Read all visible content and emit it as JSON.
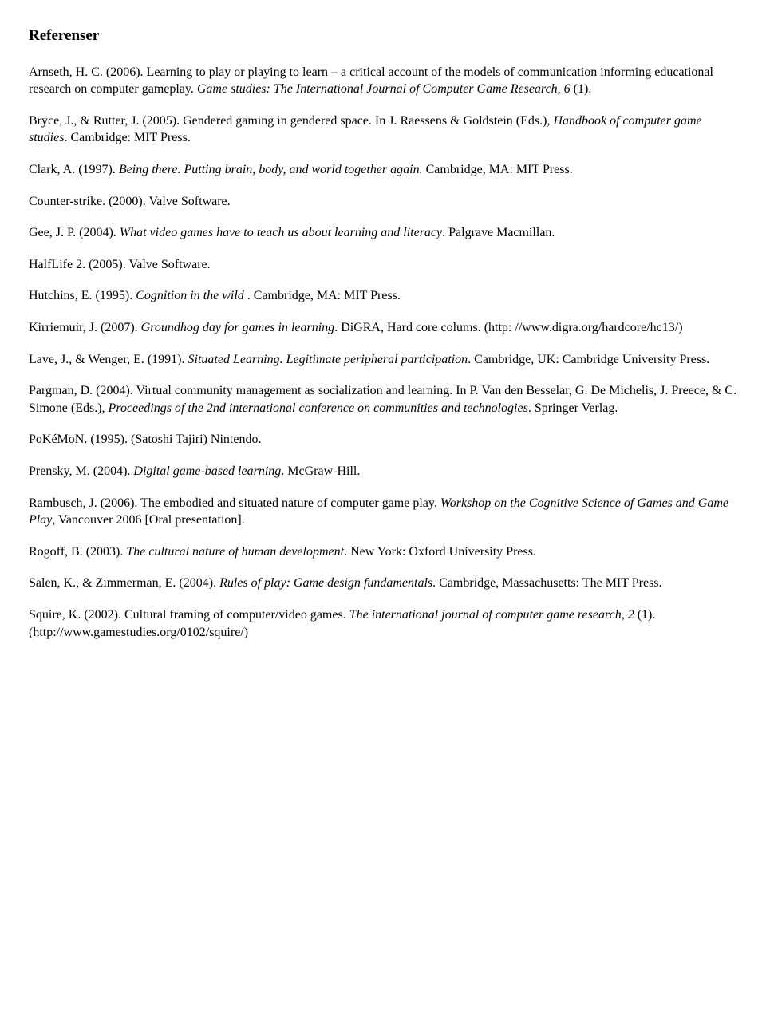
{
  "title": "Referenser",
  "refs": {
    "r1a": "Arnseth, H. C. (2006). Learning to play or playing to learn – a critical account of the models of communication informing educational research on computer gameplay. ",
    "r1b": "Game studies: The International Journal of Computer Game Research, 6",
    "r1c": " (1).",
    "r2a": "Bryce, J., & Rutter, J. (2005). Gendered gaming in gendered space. In J. Raessens & Goldstein (Eds.), ",
    "r2b": "Handbook of computer game studies",
    "r2c": ". Cambridge: MIT Press.",
    "r3a": "Clark, A. (1997). ",
    "r3b": "Being there. Putting brain, body, and world together again.",
    "r3c": " Cambridge, MA: MIT Press.",
    "r4": "Counter-strike. (2000). Valve Software.",
    "r5a": "Gee, J. P. (2004). ",
    "r5b": "What video games have to teach us about learning and literacy",
    "r5c": ". Palgrave Macmillan.",
    "r6": "HalfLife 2. (2005). Valve Software.",
    "r7a": "Hutchins, E. (1995). ",
    "r7b": "Cognition in the wild ",
    "r7c": ". Cambridge, MA: MIT Press.",
    "r8a": "Kirriemuir, J. (2007). ",
    "r8b": "Groundhog day for games in learning",
    "r8c": ". DiGRA, Hard core colums. (http: //www.digra.org/hardcore/hc13/)",
    "r9a": "Lave, J., & Wenger, E. (1991). ",
    "r9b": "Situated Learning. Legitimate peripheral participation",
    "r9c": ". Cambridge, UK: Cambridge University Press.",
    "r10a": "Pargman, D. (2004). Virtual community management as socialization and learning. In P. Van den Besselar, G. De Michelis, J. Preece, & C. Simone (Eds.), ",
    "r10b": "Proceedings of the 2nd international conference on communities and technologies",
    "r10c": ". Springer Verlag.",
    "r11": "PoKéMoN. (1995). (Satoshi Tajiri) Nintendo.",
    "r12a": "Prensky, M. (2004). ",
    "r12b": "Digital game-based learning",
    "r12c": ". McGraw-Hill.",
    "r13a": "Rambusch, J. (2006). The embodied and situated nature of computer game play. ",
    "r13b": "Workshop on the Cognitive Science of Games and Game Play",
    "r13c": ", Vancouver 2006 [Oral presentation].",
    "r14a": "Rogoff, B. (2003). ",
    "r14b": "The cultural nature of human development",
    "r14c": ". New York: Oxford University Press.",
    "r15a": "Salen, K., & Zimmerman, E. (2004). ",
    "r15b": "Rules of play: Game design fundamentals",
    "r15c": ". Cambridge, Massachusetts: The MIT Press.",
    "r16a": "Squire, K. (2002). Cultural framing of computer/video games. ",
    "r16b": "The international journal of computer game research, 2",
    "r16c": " (1). (http://www.gamestudies.org/0102/squire/)"
  }
}
